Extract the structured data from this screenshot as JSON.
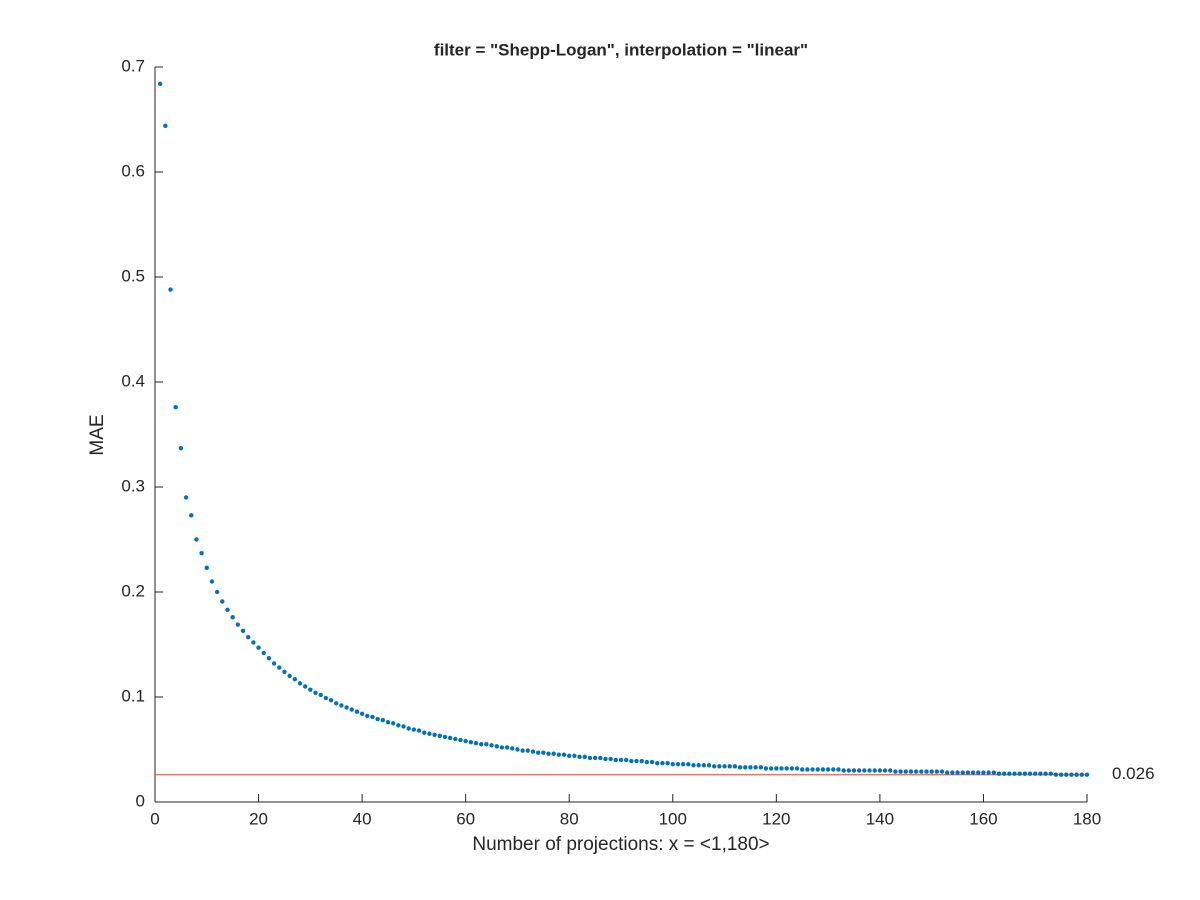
{
  "chart_data": {
    "type": "scatter",
    "title": "filter = \"Shepp-Logan\", interpolation = \"linear\"",
    "x_label": "Number of projections: x = <1,180>",
    "y_label": "MAE",
    "xlim": [
      0,
      180
    ],
    "xticks": [
      0,
      20,
      40,
      60,
      80,
      100,
      120,
      140,
      160,
      180
    ],
    "ylim": [
      0,
      0.7
    ],
    "yticks": [
      0,
      0.1,
      0.2,
      0.3,
      0.4,
      0.5,
      0.6,
      0.7
    ],
    "grid": false,
    "series": [
      {
        "color": "#0072bd",
        "x": [
          1,
          2,
          3,
          4,
          5,
          6,
          7,
          8,
          9,
          10,
          11,
          12,
          13,
          14,
          15,
          16,
          17,
          18,
          19,
          20,
          21,
          22,
          23,
          24,
          25,
          26,
          27,
          28,
          29,
          30,
          31,
          32,
          33,
          34,
          35,
          36,
          37,
          38,
          39,
          40,
          41,
          42,
          43,
          44,
          45,
          46,
          47,
          48,
          49,
          50,
          51,
          52,
          53,
          54,
          55,
          56,
          57,
          58,
          59,
          60,
          61,
          62,
          63,
          64,
          65,
          66,
          67,
          68,
          69,
          70,
          71,
          72,
          73,
          74,
          75,
          76,
          77,
          78,
          79,
          80,
          81,
          82,
          83,
          84,
          85,
          86,
          87,
          88,
          89,
          90,
          91,
          92,
          93,
          94,
          95,
          96,
          97,
          98,
          99,
          100,
          101,
          102,
          103,
          104,
          105,
          106,
          107,
          108,
          109,
          110,
          111,
          112,
          113,
          114,
          115,
          116,
          117,
          118,
          119,
          120,
          121,
          122,
          123,
          124,
          125,
          126,
          127,
          128,
          129,
          130,
          131,
          132,
          133,
          134,
          135,
          136,
          137,
          138,
          139,
          140,
          141,
          142,
          143,
          144,
          145,
          146,
          147,
          148,
          149,
          150,
          151,
          152,
          153,
          154,
          155,
          156,
          157,
          158,
          159,
          160,
          161,
          162,
          163,
          164,
          165,
          166,
          167,
          168,
          169,
          170,
          171,
          172,
          173,
          174,
          175,
          176,
          177,
          178,
          179,
          180
        ],
        "values": [
          0.684,
          0.644,
          0.488,
          0.376,
          0.337,
          0.29,
          0.273,
          0.25,
          0.237,
          0.223,
          0.21,
          0.2,
          0.191,
          0.183,
          0.176,
          0.169,
          0.163,
          0.157,
          0.152,
          0.147,
          0.142,
          0.137,
          0.132,
          0.128,
          0.124,
          0.12,
          0.117,
          0.113,
          0.11,
          0.107,
          0.104,
          0.102,
          0.099,
          0.097,
          0.094,
          0.092,
          0.09,
          0.088,
          0.086,
          0.084,
          0.082,
          0.081,
          0.079,
          0.078,
          0.076,
          0.075,
          0.073,
          0.072,
          0.07,
          0.069,
          0.068,
          0.066,
          0.065,
          0.064,
          0.063,
          0.062,
          0.061,
          0.06,
          0.059,
          0.058,
          0.057,
          0.056,
          0.055,
          0.055,
          0.054,
          0.053,
          0.052,
          0.052,
          0.051,
          0.05,
          0.049,
          0.049,
          0.048,
          0.047,
          0.047,
          0.046,
          0.046,
          0.045,
          0.045,
          0.044,
          0.044,
          0.043,
          0.043,
          0.042,
          0.042,
          0.042,
          0.041,
          0.041,
          0.04,
          0.04,
          0.04,
          0.039,
          0.039,
          0.039,
          0.038,
          0.038,
          0.037,
          0.037,
          0.037,
          0.036,
          0.036,
          0.036,
          0.036,
          0.035,
          0.035,
          0.035,
          0.035,
          0.034,
          0.034,
          0.034,
          0.034,
          0.034,
          0.033,
          0.033,
          0.033,
          0.033,
          0.033,
          0.032,
          0.032,
          0.032,
          0.032,
          0.032,
          0.032,
          0.032,
          0.031,
          0.031,
          0.031,
          0.031,
          0.031,
          0.031,
          0.031,
          0.031,
          0.03,
          0.03,
          0.03,
          0.03,
          0.03,
          0.03,
          0.03,
          0.03,
          0.03,
          0.03,
          0.029,
          0.029,
          0.029,
          0.029,
          0.029,
          0.029,
          0.029,
          0.029,
          0.029,
          0.029,
          0.028,
          0.028,
          0.028,
          0.028,
          0.028,
          0.028,
          0.028,
          0.028,
          0.028,
          0.028,
          0.027,
          0.027,
          0.027,
          0.027,
          0.027,
          0.027,
          0.027,
          0.027,
          0.027,
          0.027,
          0.027,
          0.026,
          0.026,
          0.026,
          0.026,
          0.026,
          0.026,
          0.026
        ]
      }
    ],
    "reference_line": {
      "value": 0.026,
      "color": "#e8413a"
    }
  }
}
